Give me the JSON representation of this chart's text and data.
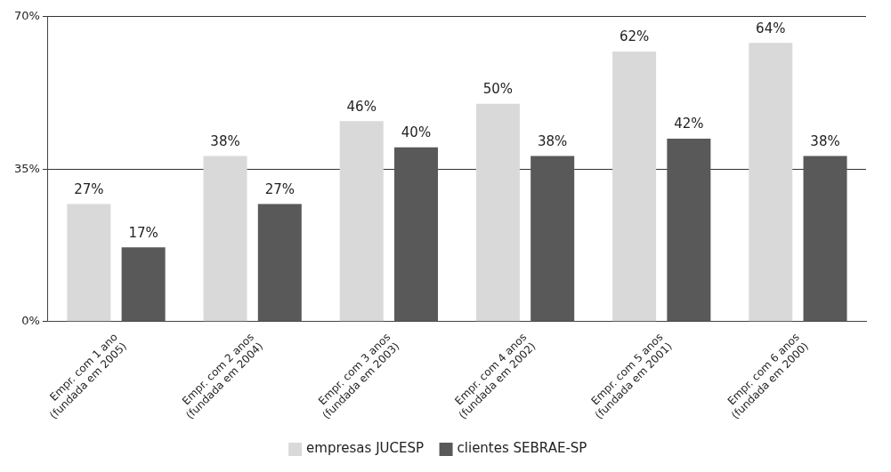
{
  "chart_data": {
    "type": "bar",
    "categories": [
      "Empr. com 1 ano\n(fundada em 2005)",
      "Empr. com 2 anos\n(fundada em 2004)",
      "Empr. com 3 anos\n(fundada em 2003)",
      "Empr. com 4 anos\n(fundada em 2002)",
      "Empr. com 5 anos\n(fundada em 2001)",
      "Empr. com 6 anos\n(fundada em 2000)"
    ],
    "series": [
      {
        "name": "empresas JUCESP",
        "color": "#d9d9d9",
        "values": [
          27,
          38,
          46,
          50,
          62,
          64
        ],
        "value_labels": [
          "27%",
          "38%",
          "46%",
          "50%",
          "62%",
          "64%"
        ]
      },
      {
        "name": "clientes SEBRAE-SP",
        "color": "#595959",
        "values": [
          17,
          27,
          40,
          38,
          42,
          38
        ],
        "value_labels": [
          "17%",
          "27%",
          "40%",
          "38%",
          "42%",
          "38%"
        ]
      }
    ],
    "ylim": [
      0,
      70
    ],
    "yticks": [
      {
        "value": 0,
        "label": "0%"
      },
      {
        "value": 35,
        "label": "35%"
      },
      {
        "value": 70,
        "label": "70%"
      }
    ],
    "grid": "y",
    "legend": "bottom"
  }
}
